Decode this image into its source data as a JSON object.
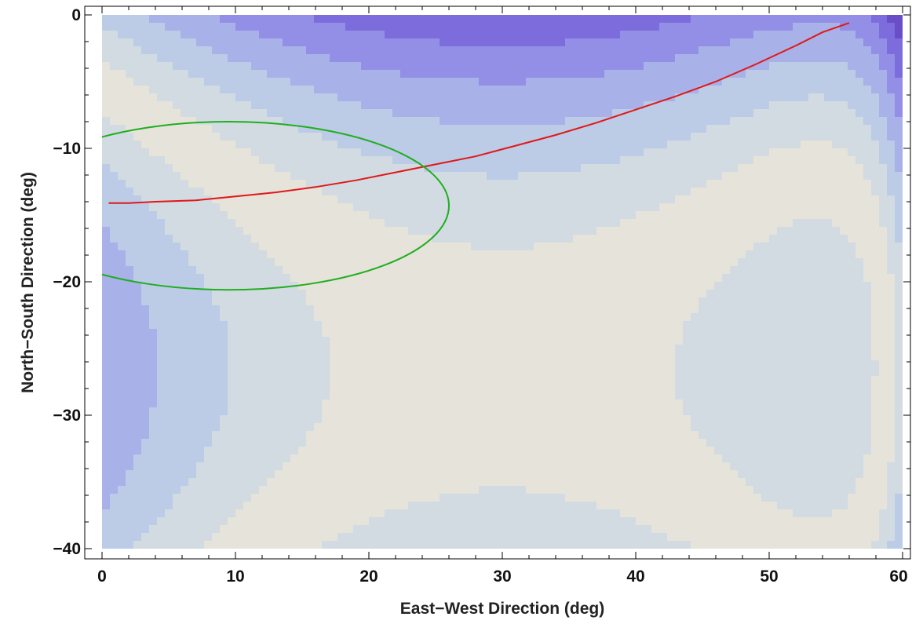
{
  "chart_data": {
    "type": "contour",
    "xlabel": "East−West Direction (deg)",
    "ylabel": "North−South Direction (deg)",
    "xlim": [
      0,
      60
    ],
    "ylim": [
      -40,
      0
    ],
    "x_ticks": [
      0,
      10,
      20,
      30,
      40,
      50,
      60
    ],
    "y_ticks": [
      0,
      -10,
      -20,
      -30,
      -40
    ],
    "x_tick_labels": [
      "0",
      "10",
      "20",
      "30",
      "40",
      "50",
      "60"
    ],
    "y_tick_labels": [
      "0",
      "−10",
      "−20",
      "−30",
      "−40"
    ],
    "contour_colors": [
      "#e6e3da",
      "#d1dbe1",
      "#bccbe6",
      "#a8b1e8",
      "#938fe6",
      "#7d6cdc",
      "#6a4ec8",
      "#5a2ea8"
    ],
    "contour_line_color": "#8a8a8a",
    "series": [
      {
        "color": "#e01818",
        "x": [
          0.5,
          2,
          4,
          7,
          10,
          13,
          16,
          19,
          22,
          25,
          28,
          31,
          34,
          37,
          40,
          43,
          46,
          49,
          52,
          54,
          56
        ],
        "y": [
          -14.1,
          -14.1,
          -14.0,
          -13.9,
          -13.6,
          -13.3,
          -12.9,
          -12.4,
          -11.8,
          -11.2,
          -10.6,
          -9.8,
          -9.0,
          -8.1,
          -7.1,
          -6.1,
          -5.0,
          -3.7,
          -2.3,
          -1.3,
          -0.6
        ]
      },
      {
        "color": "#1fae1f",
        "center": [
          9.5,
          -14.3
        ],
        "radii": [
          16.5,
          6.3
        ]
      }
    ]
  }
}
